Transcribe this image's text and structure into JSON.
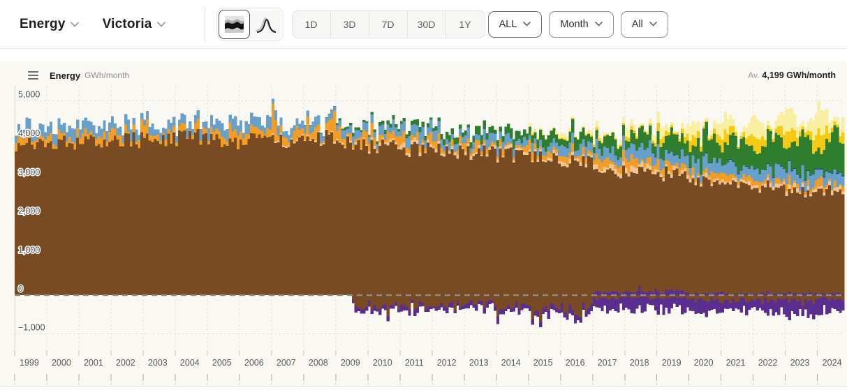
{
  "toolbar": {
    "metric_label": "Energy",
    "region_label": "Victoria",
    "ranges": [
      "1D",
      "3D",
      "7D",
      "30D",
      "1Y"
    ],
    "range_all_label": "ALL",
    "interval_label": "Month",
    "filter_label": "All",
    "icons": {
      "stacked_style_icon": "stacked-area-icon",
      "distribution_style_icon": "distribution-curve-icon"
    }
  },
  "chart_header": {
    "title": "Energy",
    "units": "GWh/month",
    "average_prefix": "Av.",
    "average_value": "4,199 GWh/month"
  },
  "chart_data": {
    "type": "area",
    "subtype": "stacked-monthly-columns",
    "title": "Energy GWh/month",
    "ylabel": "GWh/month",
    "region": "Victoria",
    "interval": "Month",
    "range": "ALL (1999–2024)",
    "grid": "dashed",
    "ylim": [
      -1300,
      5250
    ],
    "yticks": [
      {
        "v": 5000,
        "label": "5,000"
      },
      {
        "v": 4000,
        "label": "4,000"
      },
      {
        "v": 3000,
        "label": "3,000"
      },
      {
        "v": 2000,
        "label": "2,000"
      },
      {
        "v": 1000,
        "label": "1,000"
      },
      {
        "v": 0,
        "label": "0"
      },
      {
        "v": -1000,
        "label": "−1,000"
      }
    ],
    "xticks": [
      "1999",
      "2000",
      "2001",
      "2002",
      "2003",
      "2004",
      "2005",
      "2006",
      "2007",
      "2008",
      "2009",
      "2010",
      "2011",
      "2012",
      "2013",
      "2014",
      "2015",
      "2016",
      "2017",
      "2018",
      "2019",
      "2020",
      "2021",
      "2022",
      "2023",
      "2024"
    ],
    "average_gwh_month": 4199,
    "pos_stack_keys": [
      "purple-imports",
      "brown-coal",
      "tan-gas",
      "orange-gas",
      "blue-hydro",
      "navy-battery",
      "green-wind",
      "gold-solar",
      "lightyellow-rooftop"
    ],
    "pos_colors": [
      "#5A2D91",
      "#784B22",
      "#F2C694",
      "#F49D25",
      "#68A0CC",
      "#2B3F97",
      "#2F7D2F",
      "#F6C913",
      "#F9EFA0"
    ],
    "neg_stack_keys": [
      "brown-negative",
      "purple-exports"
    ],
    "neg_colors": [
      "#784B22",
      "#5A2D91"
    ],
    "years": [
      {
        "year": 1999,
        "pos": [
          0,
          3850,
          0,
          130,
          240,
          0,
          0,
          0,
          0
        ],
        "neg": [
          0,
          0
        ]
      },
      {
        "year": 2000,
        "pos": [
          0,
          3900,
          0,
          150,
          260,
          0,
          0,
          0,
          0
        ],
        "neg": [
          0,
          0
        ]
      },
      {
        "year": 2001,
        "pos": [
          0,
          3950,
          0,
          150,
          250,
          0,
          0,
          0,
          0
        ],
        "neg": [
          0,
          0
        ]
      },
      {
        "year": 2002,
        "pos": [
          0,
          4000,
          0,
          160,
          220,
          0,
          0,
          0,
          0
        ],
        "neg": [
          0,
          0
        ]
      },
      {
        "year": 2003,
        "pos": [
          0,
          4000,
          0,
          180,
          230,
          0,
          0,
          0,
          0
        ],
        "neg": [
          0,
          0
        ]
      },
      {
        "year": 2004,
        "pos": [
          0,
          4050,
          0,
          180,
          210,
          0,
          0,
          0,
          0
        ],
        "neg": [
          0,
          0
        ]
      },
      {
        "year": 2005,
        "pos": [
          0,
          3950,
          0,
          180,
          250,
          0,
          0,
          0,
          0
        ],
        "neg": [
          0,
          0
        ]
      },
      {
        "year": 2006,
        "pos": [
          0,
          4000,
          0,
          200,
          230,
          0,
          0,
          0,
          0
        ],
        "neg": [
          0,
          0
        ]
      },
      {
        "year": 2007,
        "pos": [
          0,
          3950,
          30,
          280,
          180,
          0,
          0,
          0,
          0
        ],
        "neg": [
          0,
          0
        ]
      },
      {
        "year": 2008,
        "pos": [
          0,
          4050,
          30,
          260,
          180,
          0,
          10,
          0,
          0
        ],
        "neg": [
          0,
          0
        ]
      },
      {
        "year": 2009,
        "pos": [
          0,
          3950,
          40,
          220,
          170,
          0,
          60,
          0,
          0
        ],
        "neg": [
          250,
          110
        ],
        "negFrom": 6
      },
      {
        "year": 2010,
        "pos": [
          0,
          3800,
          60,
          180,
          200,
          0,
          90,
          0,
          0
        ],
        "neg": [
          280,
          120
        ]
      },
      {
        "year": 2011,
        "pos": [
          0,
          3750,
          80,
          150,
          250,
          0,
          110,
          0,
          0
        ],
        "neg": [
          250,
          120
        ]
      },
      {
        "year": 2012,
        "pos": [
          0,
          3700,
          60,
          120,
          230,
          0,
          130,
          0,
          0
        ],
        "neg": [
          220,
          100
        ]
      },
      {
        "year": 2013,
        "pos": [
          0,
          3650,
          60,
          110,
          220,
          0,
          160,
          0,
          0
        ],
        "neg": [
          220,
          110
        ]
      },
      {
        "year": 2014,
        "pos": [
          0,
          3600,
          70,
          120,
          200,
          0,
          180,
          0,
          0
        ],
        "neg": [
          260,
          130
        ]
      },
      {
        "year": 2015,
        "pos": [
          0,
          3550,
          70,
          130,
          200,
          0,
          220,
          15,
          50
        ],
        "neg": [
          420,
          160
        ]
      },
      {
        "year": 2016,
        "pos": [
          0,
          3450,
          80,
          140,
          210,
          0,
          260,
          25,
          70
        ],
        "neg": [
          380,
          170
        ]
      },
      {
        "year": 2017,
        "pos": [
          60,
          3100,
          100,
          180,
          280,
          0,
          300,
          40,
          100
        ],
        "neg": [
          80,
          250
        ]
      },
      {
        "year": 2018,
        "pos": [
          80,
          3050,
          100,
          170,
          300,
          0,
          340,
          60,
          130
        ],
        "neg": [
          60,
          280
        ]
      },
      {
        "year": 2019,
        "pos": [
          90,
          3000,
          90,
          150,
          290,
          5,
          420,
          120,
          170
        ],
        "neg": [
          60,
          300
        ]
      },
      {
        "year": 2020,
        "pos": [
          40,
          2900,
          80,
          120,
          280,
          8,
          520,
          160,
          220
        ],
        "neg": [
          120,
          280
        ]
      },
      {
        "year": 2021,
        "pos": [
          30,
          2800,
          70,
          110,
          280,
          10,
          600,
          200,
          270
        ],
        "neg": [
          140,
          260
        ]
      },
      {
        "year": 2022,
        "pos": [
          30,
          2700,
          70,
          110,
          300,
          12,
          680,
          230,
          320
        ],
        "neg": [
          150,
          300
        ]
      },
      {
        "year": 2023,
        "pos": [
          40,
          2600,
          80,
          120,
          300,
          15,
          720,
          260,
          370
        ],
        "neg": [
          120,
          320
        ]
      },
      {
        "year": 2024,
        "pos": [
          40,
          2650,
          80,
          130,
          280,
          18,
          760,
          290,
          400
        ],
        "neg": [
          100,
          330
        ],
        "months": 10
      }
    ]
  },
  "colors": {
    "panel_bg": "#FAF8F3",
    "gridline": "#E5E2DA",
    "zero_line": "#8A8A8A",
    "axis_text": "#585858",
    "ytick_text": "#474747",
    "toolbar_border": "#EAEAEA"
  }
}
